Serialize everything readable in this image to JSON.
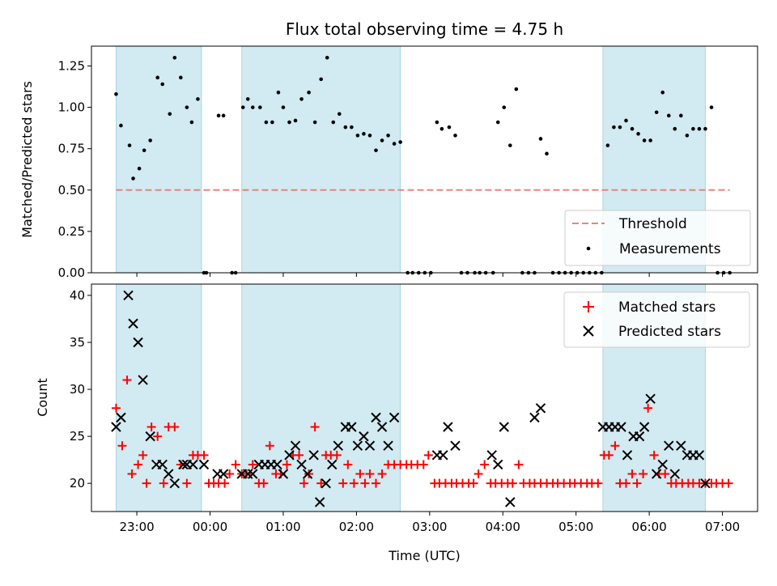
{
  "chart_data": [
    {
      "type": "scatter",
      "title": "Flux total observing time = 4.75 h",
      "xlabel": "",
      "ylabel": "Matched/Predicted stars",
      "xlim": [
        22.38,
        7.48
      ],
      "ylim": [
        0.0,
        1.37
      ],
      "yticks": [
        "0.00",
        "0.25",
        "0.50",
        "0.75",
        "1.00",
        "1.25"
      ],
      "shaded_intervals": [
        [
          "22:43",
          "23:53"
        ],
        [
          "00:26",
          "02:36"
        ],
        [
          "05:22",
          "06:46"
        ]
      ],
      "threshold": {
        "name": "Threshold",
        "y": 0.5,
        "x_range": [
          "22:43",
          "07:06"
        ],
        "color": "#f08080"
      },
      "series": [
        {
          "name": "Measurements",
          "color": "#000000",
          "x": [
            "22:43",
            "22:47",
            "22:54",
            "22:57",
            "23:02",
            "23:06",
            "23:11",
            "23:17",
            "23:21",
            "23:27",
            "23:31",
            "23:36",
            "23:41",
            "23:45",
            "23:50",
            "23:55",
            "23:57",
            "00:07",
            "00:11",
            "00:18",
            "00:21",
            "00:27",
            "00:31",
            "00:35",
            "00:41",
            "00:46",
            "00:51",
            "00:56",
            "01:00",
            "01:05",
            "01:10",
            "01:15",
            "01:21",
            "01:26",
            "01:31",
            "01:36",
            "01:41",
            "01:46",
            "01:51",
            "01:56",
            "02:01",
            "02:06",
            "02:11",
            "02:16",
            "02:21",
            "02:26",
            "02:31",
            "02:36",
            "02:42",
            "02:46",
            "02:51",
            "02:56",
            "03:01",
            "03:06",
            "03:10",
            "03:16",
            "03:21",
            "03:26",
            "03:31",
            "03:37",
            "03:41",
            "03:46",
            "03:52",
            "03:56",
            "04:01",
            "04:06",
            "04:11",
            "04:16",
            "04:21",
            "04:26",
            "04:31",
            "04:36",
            "04:41",
            "04:46",
            "04:51",
            "04:56",
            "05:01",
            "05:06",
            "05:11",
            "05:16",
            "05:21",
            "05:26",
            "05:31",
            "05:36",
            "05:41",
            "05:46",
            "05:51",
            "05:56",
            "06:01",
            "06:06",
            "06:11",
            "06:16",
            "06:21",
            "06:26",
            "06:31",
            "06:36",
            "06:41",
            "06:46",
            "06:51",
            "06:56",
            "07:01",
            "07:06"
          ],
          "y": [
            1.08,
            0.89,
            0.77,
            0.57,
            0.63,
            0.74,
            0.8,
            1.18,
            1.14,
            0.96,
            1.3,
            1.18,
            1.0,
            0.91,
            1.05,
            0.0,
            0.0,
            0.95,
            0.95,
            0.0,
            0.0,
            1.0,
            1.05,
            1.0,
            1.0,
            0.91,
            0.91,
            1.09,
            1.0,
            0.91,
            0.92,
            1.05,
            1.09,
            0.91,
            1.17,
            1.3,
            0.91,
            0.96,
            0.88,
            0.88,
            0.83,
            0.84,
            0.83,
            0.74,
            0.8,
            0.83,
            0.78,
            0.79,
            0.0,
            0.0,
            0.0,
            0.0,
            0.0,
            0.91,
            0.87,
            0.88,
            0.83,
            0.0,
            0.0,
            0.0,
            0.0,
            0.0,
            0.0,
            0.91,
            1.0,
            0.77,
            1.11,
            0.0,
            0.0,
            0.0,
            0.81,
            0.72,
            0.0,
            0.0,
            0.0,
            0.0,
            0.0,
            0.0,
            0.0,
            0.0,
            0.0,
            0.77,
            0.88,
            0.88,
            0.92,
            0.87,
            0.84,
            0.8,
            0.8,
            0.97,
            1.09,
            0.95,
            0.87,
            0.95,
            0.83,
            0.87,
            0.87,
            0.87,
            1.0,
            0.0,
            0.0,
            0.0
          ]
        }
      ],
      "legend": "lower-right"
    },
    {
      "type": "scatter",
      "title": "",
      "xlabel": "Time (UTC)",
      "ylabel": "Count",
      "xlim": [
        22.38,
        7.48
      ],
      "ylim": [
        17,
        41.2
      ],
      "yticks": [
        "20",
        "25",
        "30",
        "35",
        "40"
      ],
      "xticks": [
        "23:00",
        "00:00",
        "01:00",
        "02:00",
        "03:00",
        "04:00",
        "05:00",
        "06:00",
        "07:00"
      ],
      "shaded_intervals": [
        [
          "22:43",
          "23:53"
        ],
        [
          "00:26",
          "02:36"
        ],
        [
          "05:22",
          "06:46"
        ]
      ],
      "series": [
        {
          "name": "Matched stars",
          "marker": "plus",
          "color": "#ff0000",
          "x": [
            "22:43",
            "22:48",
            "22:52",
            "22:56",
            "23:01",
            "23:05",
            "23:08",
            "23:12",
            "23:17",
            "23:22",
            "23:26",
            "23:31",
            "23:36",
            "23:41",
            "23:46",
            "23:50",
            "23:55",
            "23:59",
            "00:03",
            "00:07",
            "00:12",
            "00:16",
            "00:21",
            "00:26",
            "00:30",
            "00:35",
            "00:40",
            "00:44",
            "00:49",
            "00:54",
            "00:58",
            "01:03",
            "01:08",
            "01:13",
            "01:17",
            "01:21",
            "01:26",
            "01:31",
            "01:35",
            "01:39",
            "01:44",
            "01:49",
            "01:53",
            "01:58",
            "02:03",
            "02:07",
            "02:11",
            "02:16",
            "02:21",
            "02:26",
            "02:31",
            "02:36",
            "02:41",
            "02:45",
            "02:50",
            "02:55",
            "02:59",
            "03:04",
            "03:08",
            "03:13",
            "03:18",
            "03:22",
            "03:27",
            "03:32",
            "03:36",
            "03:40",
            "03:45",
            "03:50",
            "03:54",
            "03:59",
            "04:04",
            "04:08",
            "04:13",
            "04:17",
            "04:22",
            "04:26",
            "04:31",
            "04:36",
            "04:41",
            "04:45",
            "04:50",
            "04:55",
            "04:59",
            "05:04",
            "05:09",
            "05:13",
            "05:18",
            "05:23",
            "05:27",
            "05:32",
            "05:36",
            "05:41",
            "05:46",
            "05:50",
            "05:55",
            "05:59",
            "06:04",
            "06:08",
            "06:13",
            "06:18",
            "06:22",
            "06:27",
            "06:32",
            "06:36",
            "06:41",
            "06:46",
            "06:51",
            "06:55",
            "07:00",
            "07:05"
          ],
          "y": [
            28,
            24,
            31,
            21,
            22,
            23,
            20,
            26,
            25,
            20,
            26,
            26,
            22,
            20,
            23,
            23,
            23,
            20,
            20,
            20,
            20,
            21,
            22,
            21,
            21,
            22,
            20,
            20,
            24,
            21,
            21,
            22,
            23,
            23,
            20,
            21,
            26,
            20,
            23,
            23,
            23,
            20,
            22,
            20,
            21,
            20,
            21,
            20,
            21,
            22,
            22,
            22,
            22,
            22,
            22,
            22,
            23,
            20,
            20,
            20,
            20,
            20,
            20,
            20,
            20,
            21,
            22,
            20,
            20,
            20,
            20,
            20,
            22,
            20,
            20,
            20,
            20,
            20,
            20,
            20,
            20,
            20,
            20,
            20,
            20,
            20,
            20,
            23,
            23,
            24,
            20,
            20,
            21,
            20,
            21,
            28,
            23,
            21,
            21,
            20,
            20,
            20,
            20,
            20,
            20,
            20,
            20,
            20,
            20,
            20
          ]
        },
        {
          "name": "Predicted stars",
          "marker": "x",
          "color": "#000000",
          "x": [
            "22:43",
            "22:47",
            "22:53",
            "22:57",
            "23:01",
            "23:05",
            "23:11",
            "23:16",
            "23:21",
            "23:26",
            "23:31",
            "23:38",
            "23:41",
            "23:46",
            "23:55",
            "00:06",
            "00:11",
            "00:26",
            "00:31",
            "00:35",
            "00:40",
            "00:45",
            "00:50",
            "00:55",
            "01:00",
            "01:05",
            "01:10",
            "01:15",
            "01:20",
            "01:25",
            "01:30",
            "01:35",
            "01:40",
            "01:45",
            "01:51",
            "01:56",
            "02:01",
            "02:06",
            "02:11",
            "02:16",
            "02:21",
            "02:26",
            "02:31",
            "03:06",
            "03:11",
            "03:15",
            "03:21",
            "03:51",
            "03:56",
            "04:01",
            "04:06",
            "04:26",
            "04:31",
            "05:22",
            "05:27",
            "05:32",
            "05:37",
            "05:42",
            "05:47",
            "05:52",
            "05:56",
            "06:01",
            "06:06",
            "06:11",
            "06:16",
            "06:21",
            "06:26",
            "06:31",
            "06:36",
            "06:41",
            "06:46"
          ],
          "y": [
            26,
            27,
            40,
            37,
            35,
            31,
            25,
            22,
            22,
            21,
            20,
            22,
            22,
            22,
            22,
            21,
            21,
            21,
            21,
            21,
            22,
            22,
            22,
            22,
            21,
            23,
            24,
            22,
            21,
            23,
            18,
            20,
            22,
            24,
            26,
            26,
            24,
            25,
            24,
            27,
            26,
            24,
            27,
            23,
            23,
            26,
            24,
            23,
            22,
            26,
            18,
            27,
            28,
            26,
            26,
            26,
            26,
            23,
            25,
            25,
            26,
            29,
            21,
            22,
            24,
            21,
            24,
            23,
            23,
            23,
            20
          ]
        }
      ],
      "legend": "top-right"
    }
  ]
}
